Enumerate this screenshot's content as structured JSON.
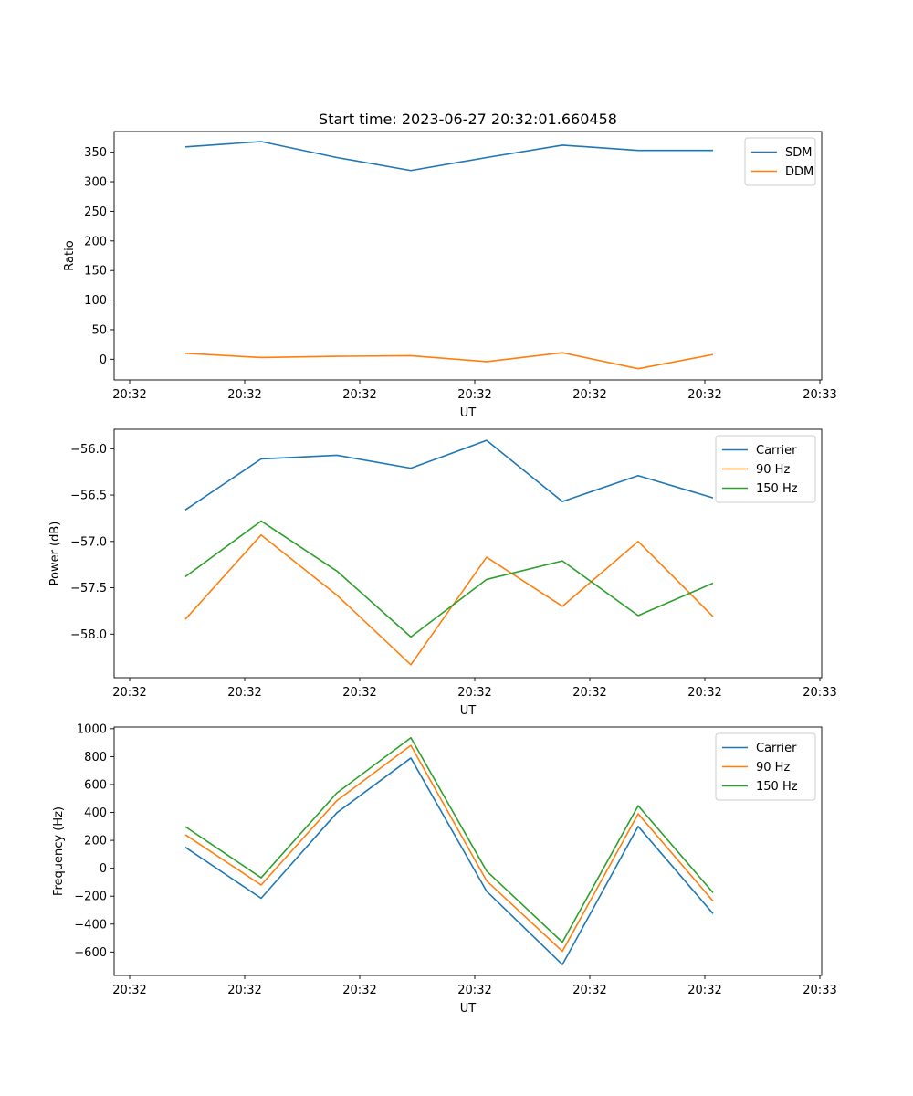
{
  "figure": {
    "title": "Start time: 2023-06-27 20:32:01.660458"
  },
  "chart_data": [
    {
      "type": "line",
      "xlabel": "UT",
      "ylabel": "Ratio",
      "x_tick_labels": [
        "20:32",
        "20:32",
        "20:32",
        "20:32",
        "20:32",
        "20:32",
        "20:33"
      ],
      "y_ticks": [
        0,
        50,
        100,
        150,
        200,
        250,
        300,
        350
      ],
      "ylim": [
        -35,
        385
      ],
      "legend_position": "upper-right",
      "grid": false,
      "colors": [
        "#1f77b4",
        "#ff7f0e"
      ],
      "series": [
        {
          "name": "SDM",
          "values": [
            359,
            368,
            341,
            319,
            341,
            362,
            353,
            353
          ]
        },
        {
          "name": "DDM",
          "values": [
            10,
            3,
            5,
            6,
            -4,
            11,
            -16,
            8
          ]
        }
      ]
    },
    {
      "type": "line",
      "xlabel": "UT",
      "ylabel": "Power (dB)",
      "x_tick_labels": [
        "20:32",
        "20:32",
        "20:32",
        "20:32",
        "20:32",
        "20:32",
        "20:33"
      ],
      "y_ticks": [
        -58.0,
        -57.5,
        -57.0,
        -56.5,
        -56.0
      ],
      "y_tick_labels": [
        "−58.0",
        "−57.5",
        "−57.0",
        "−56.5",
        "−56.0"
      ],
      "ylim": [
        -58.47,
        -55.79
      ],
      "legend_position": "upper-right",
      "grid": false,
      "colors": [
        "#1f77b4",
        "#ff7f0e",
        "#2ca02c"
      ],
      "series": [
        {
          "name": "Carrier",
          "values": [
            -56.66,
            -56.11,
            -56.07,
            -56.21,
            -55.91,
            -56.57,
            -56.29,
            -56.53
          ]
        },
        {
          "name": "90 Hz",
          "values": [
            -57.84,
            -56.93,
            -57.58,
            -58.33,
            -57.17,
            -57.7,
            -57.0,
            -57.81
          ]
        },
        {
          "name": "150 Hz",
          "values": [
            -57.38,
            -56.78,
            -57.32,
            -58.03,
            -57.41,
            -57.21,
            -57.8,
            -57.45
          ]
        }
      ]
    },
    {
      "type": "line",
      "xlabel": "UT",
      "ylabel": "Frequency (Hz)",
      "x_tick_labels": [
        "20:32",
        "20:32",
        "20:32",
        "20:32",
        "20:32",
        "20:32",
        "20:33"
      ],
      "y_ticks": [
        -600,
        -400,
        -200,
        0,
        200,
        400,
        600,
        800,
        1000
      ],
      "y_tick_labels": [
        "−600",
        "−400",
        "−200",
        "0",
        "200",
        "400",
        "600",
        "800",
        "1000"
      ],
      "ylim": [
        -768,
        1012
      ],
      "legend_position": "upper-right",
      "grid": false,
      "colors": [
        "#1f77b4",
        "#ff7f0e",
        "#2ca02c"
      ],
      "series": [
        {
          "name": "Carrier",
          "values": [
            150,
            -215,
            398,
            790,
            -165,
            -690,
            300,
            -325
          ]
        },
        {
          "name": "90 Hz",
          "values": [
            240,
            -120,
            485,
            880,
            -90,
            -595,
            390,
            -235
          ]
        },
        {
          "name": "150 Hz",
          "values": [
            298,
            -68,
            540,
            935,
            -20,
            -530,
            448,
            -175
          ]
        }
      ]
    }
  ]
}
